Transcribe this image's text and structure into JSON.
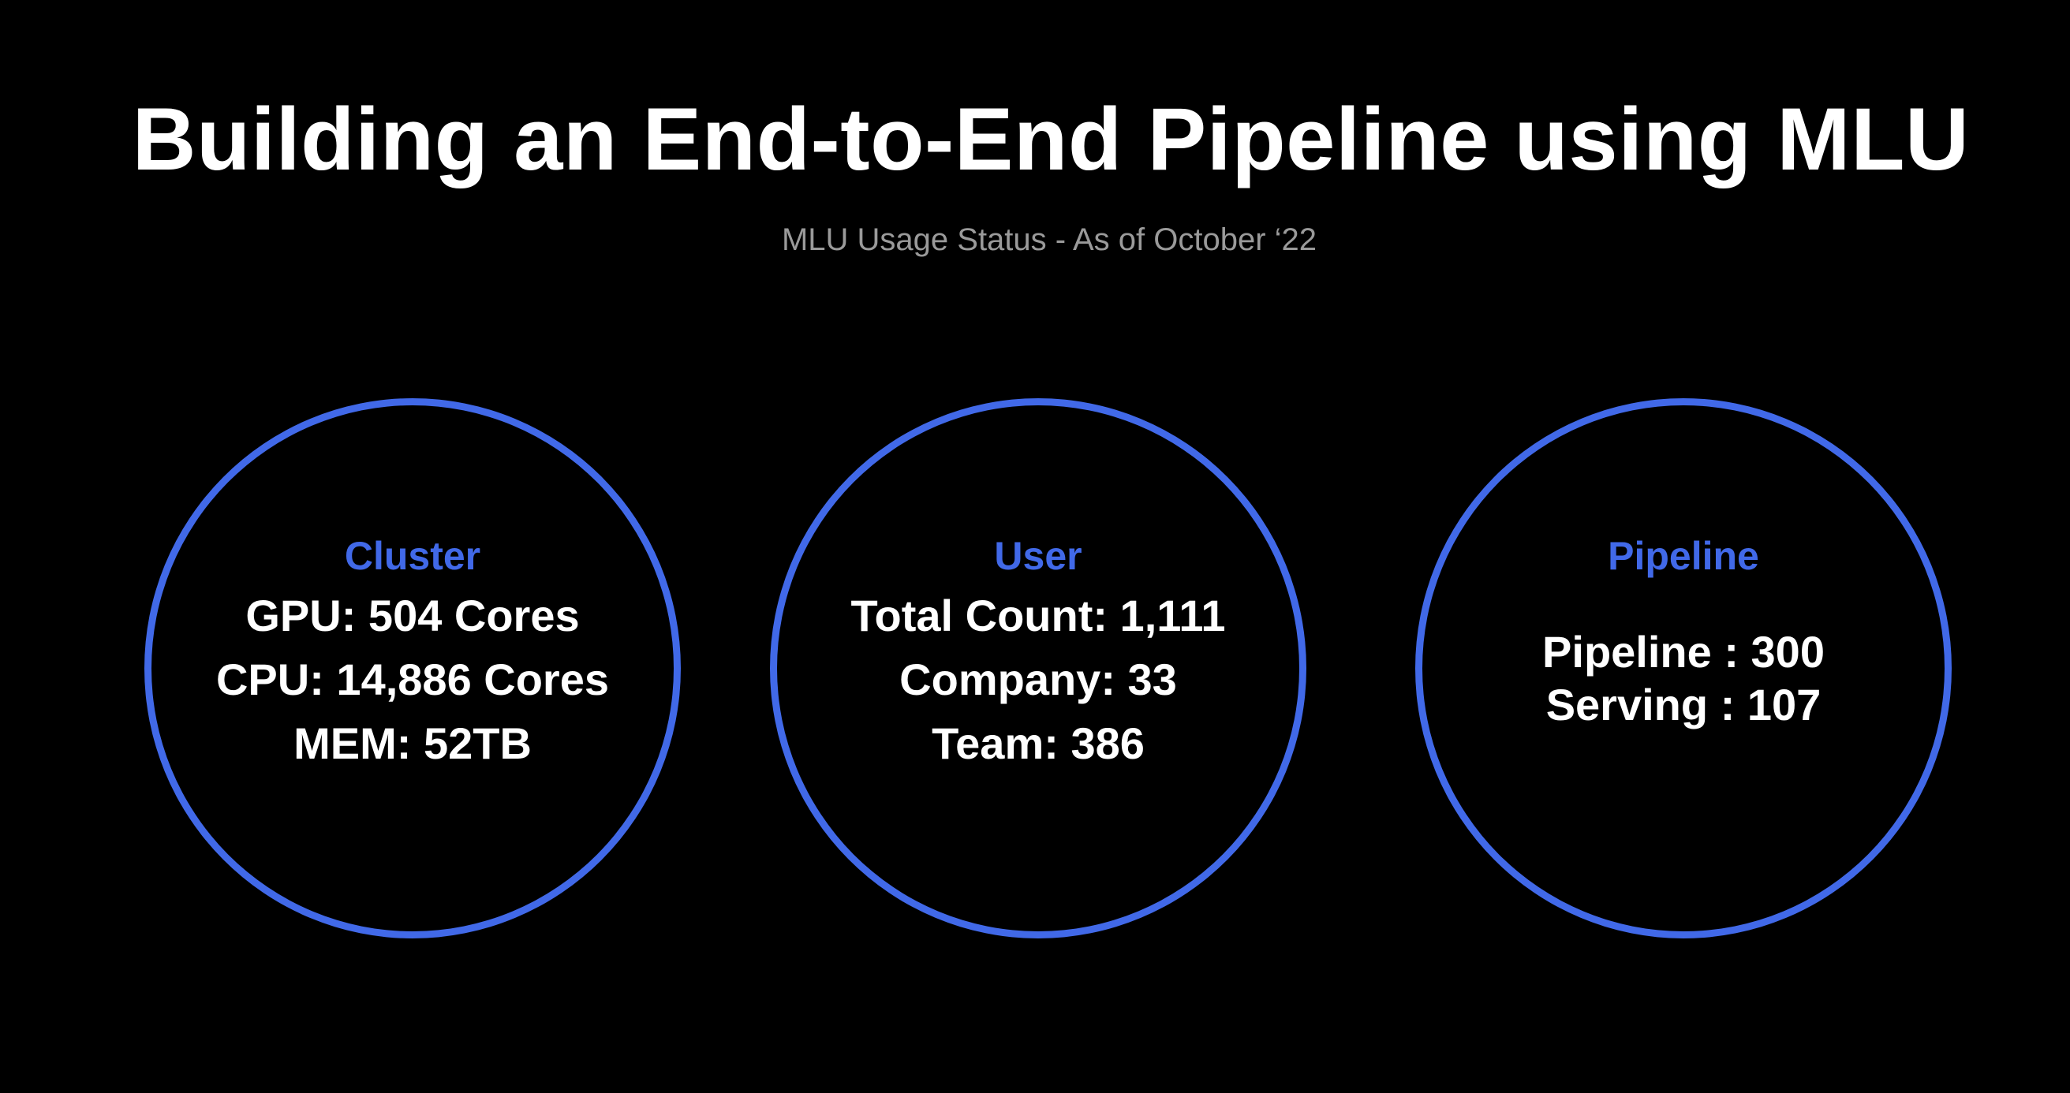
{
  "title": "Building an End-to-End Pipeline using MLU",
  "subtitle": "MLU Usage Status -  As of October ‘22",
  "colors": {
    "background": "#000000",
    "accent": "#4169e8",
    "text": "#ffffff",
    "subtitle": "#9a9a9a"
  },
  "cards": [
    {
      "heading": "Cluster",
      "lines": [
        "GPU: 504 Cores",
        "CPU: 14,886 Cores",
        "MEM: 52TB"
      ]
    },
    {
      "heading": "User",
      "lines": [
        "Total Count: 1,111",
        "Company: 33",
        "Team: 386"
      ]
    },
    {
      "heading": "Pipeline",
      "lines": [
        "Pipeline : 300",
        "Serving : 107"
      ]
    }
  ]
}
